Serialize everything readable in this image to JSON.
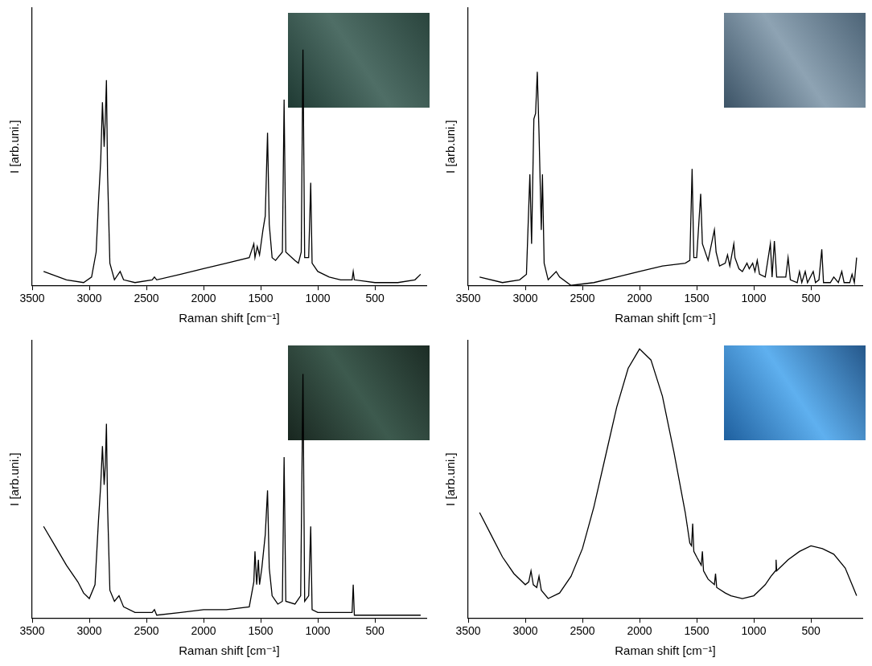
{
  "chart_data": [
    {
      "type": "line",
      "xlabel": "Raman shift [cm⁻¹]",
      "ylabel": "I [arb.uni.]",
      "xlim": [
        3500,
        50
      ],
      "ylim": [
        0,
        100
      ],
      "xticks": [
        3500,
        3000,
        2500,
        2000,
        1500,
        1000,
        500
      ],
      "tick_labels": "x",
      "grid": false,
      "color": "#000000",
      "x": [
        3400,
        3200,
        3050,
        2980,
        2940,
        2920,
        2900,
        2885,
        2870,
        2860,
        2850,
        2840,
        2820,
        2780,
        2730,
        2700,
        2600,
        2450,
        2430,
        2410,
        2200,
        2000,
        1800,
        1600,
        1560,
        1550,
        1530,
        1510,
        1480,
        1460,
        1440,
        1425,
        1400,
        1370,
        1310,
        1295,
        1280,
        1200,
        1170,
        1145,
        1130,
        1115,
        1080,
        1062,
        1050,
        1000,
        900,
        800,
        700,
        690,
        680,
        500,
        300,
        150,
        100
      ],
      "values": [
        5,
        2,
        1,
        3,
        12,
        30,
        45,
        66,
        50,
        60,
        74,
        40,
        8,
        2,
        5,
        2,
        1,
        2,
        3,
        2,
        4,
        6,
        8,
        10,
        15,
        10,
        14,
        11,
        20,
        25,
        55,
        22,
        10,
        9,
        12,
        67,
        12,
        9,
        8,
        12,
        85,
        10,
        10,
        37,
        8,
        5,
        3,
        2,
        2,
        5,
        2,
        1,
        1,
        2,
        4
      ]
    },
    {
      "type": "line",
      "xlabel": "Raman shift [cm⁻¹]",
      "ylabel": "I [arb.uni.]",
      "xlim": [
        3500,
        50
      ],
      "ylim": [
        0,
        100
      ],
      "xticks": [
        3500,
        3000,
        2500,
        2000,
        1500,
        1000,
        500
      ],
      "tick_labels": "x",
      "grid": false,
      "color": "#000000",
      "x": [
        3400,
        3200,
        3050,
        2990,
        2960,
        2945,
        2925,
        2910,
        2895,
        2880,
        2860,
        2850,
        2835,
        2800,
        2730,
        2700,
        2600,
        2400,
        2200,
        2000,
        1800,
        1600,
        1560,
        1540,
        1525,
        1500,
        1465,
        1450,
        1400,
        1345,
        1330,
        1300,
        1250,
        1230,
        1210,
        1175,
        1165,
        1130,
        1100,
        1060,
        1040,
        1010,
        990,
        970,
        950,
        900,
        855,
        840,
        820,
        800,
        720,
        700,
        680,
        620,
        600,
        580,
        550,
        530,
        480,
        460,
        430,
        405,
        390,
        330,
        300,
        260,
        230,
        210,
        160,
        140,
        120,
        100
      ],
      "values": [
        3,
        1,
        2,
        4,
        40,
        15,
        60,
        62,
        77,
        55,
        20,
        40,
        8,
        2,
        5,
        3,
        0,
        1,
        3,
        5,
        7,
        8,
        9,
        42,
        10,
        10,
        33,
        15,
        9,
        20,
        12,
        7,
        8,
        11,
        7,
        15,
        10,
        6,
        5,
        8,
        6,
        8,
        5,
        9,
        4,
        3,
        15,
        3,
        16,
        3,
        3,
        10,
        2,
        1,
        5,
        1,
        5,
        1,
        5,
        1,
        2,
        13,
        1,
        1,
        3,
        1,
        5,
        1,
        1,
        4,
        1,
        10
      ]
    },
    {
      "type": "line",
      "xlabel": "Raman shift [cm⁻¹]",
      "ylabel": "I [arb.uni.]",
      "xlim": [
        3500,
        50
      ],
      "ylim": [
        0,
        100
      ],
      "xticks": [
        3500,
        3000,
        2500,
        2000,
        1500,
        1000,
        500
      ],
      "tick_labels": "x",
      "grid": false,
      "color": "#000000",
      "x": [
        3400,
        3300,
        3200,
        3100,
        3050,
        3000,
        2950,
        2920,
        2900,
        2885,
        2870,
        2860,
        2850,
        2840,
        2820,
        2780,
        2740,
        2700,
        2600,
        2450,
        2430,
        2410,
        2200,
        2000,
        1800,
        1600,
        1560,
        1550,
        1535,
        1520,
        1510,
        1490,
        1460,
        1440,
        1425,
        1400,
        1350,
        1310,
        1295,
        1280,
        1200,
        1150,
        1130,
        1115,
        1080,
        1062,
        1050,
        1000,
        900,
        800,
        700,
        690,
        680,
        500,
        300,
        100
      ],
      "values": [
        33,
        26,
        19,
        13,
        9,
        7,
        12,
        35,
        48,
        62,
        48,
        55,
        70,
        40,
        10,
        6,
        8,
        4,
        2,
        2,
        3,
        1,
        2,
        3,
        3,
        4,
        13,
        24,
        12,
        21,
        12,
        18,
        30,
        46,
        18,
        8,
        5,
        6,
        58,
        6,
        5,
        8,
        88,
        6,
        8,
        33,
        3,
        2,
        2,
        2,
        2,
        12,
        1,
        1,
        1,
        1
      ]
    },
    {
      "type": "line",
      "xlabel": "Raman shift [cm⁻¹]",
      "ylabel": "I [arb.uni.]",
      "xlim": [
        3500,
        50
      ],
      "ylim": [
        0,
        100
      ],
      "xticks": [
        3500,
        3000,
        2500,
        2000,
        1500,
        1000,
        500
      ],
      "tick_labels": "x",
      "grid": false,
      "color": "#000000",
      "x": [
        3400,
        3300,
        3200,
        3100,
        3000,
        2970,
        2950,
        2930,
        2900,
        2880,
        2860,
        2800,
        2700,
        2600,
        2500,
        2400,
        2300,
        2200,
        2100,
        2000,
        1900,
        1800,
        1700,
        1600,
        1560,
        1545,
        1535,
        1525,
        1500,
        1460,
        1450,
        1440,
        1400,
        1345,
        1335,
        1325,
        1250,
        1200,
        1100,
        1000,
        950,
        900,
        850,
        810,
        805,
        800,
        700,
        600,
        500,
        400,
        300,
        200,
        150,
        100
      ],
      "values": [
        38,
        30,
        22,
        16,
        12,
        13,
        17,
        12,
        11,
        15,
        10,
        7,
        9,
        15,
        25,
        40,
        58,
        76,
        90,
        97,
        93,
        80,
        60,
        38,
        27,
        26,
        34,
        24,
        22,
        19,
        24,
        17,
        14,
        12,
        16,
        11,
        9,
        8,
        7,
        8,
        10,
        12,
        15,
        17,
        21,
        17,
        21,
        24,
        26,
        25,
        23,
        18,
        13,
        8
      ]
    }
  ]
}
